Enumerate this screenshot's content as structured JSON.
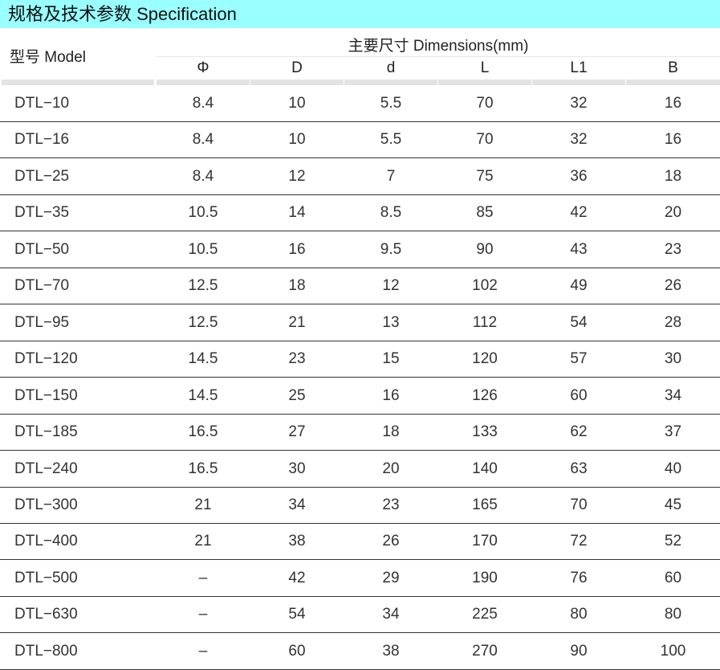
{
  "title": "规格及技术参数  Specification",
  "header": {
    "model": "型号 Model",
    "dimensions": "主要尺寸  Dimensions(mm)",
    "columns": [
      "Φ",
      "D",
      "d",
      "L",
      "L1",
      "B"
    ]
  },
  "rows": [
    [
      "DTL−10",
      "8.4",
      "10",
      "5.5",
      "70",
      "32",
      "16"
    ],
    [
      "DTL−16",
      "8.4",
      "10",
      "5.5",
      "70",
      "32",
      "16"
    ],
    [
      "DTL−25",
      "8.4",
      "12",
      "7",
      "75",
      "36",
      "18"
    ],
    [
      "DTL−35",
      "10.5",
      "14",
      "8.5",
      "85",
      "42",
      "20"
    ],
    [
      "DTL−50",
      "10.5",
      "16",
      "9.5",
      "90",
      "43",
      "23"
    ],
    [
      "DTL−70",
      "12.5",
      "18",
      "12",
      "102",
      "49",
      "26"
    ],
    [
      "DTL−95",
      "12.5",
      "21",
      "13",
      "112",
      "54",
      "28"
    ],
    [
      "DTL−120",
      "14.5",
      "23",
      "15",
      "120",
      "57",
      "30"
    ],
    [
      "DTL−150",
      "14.5",
      "25",
      "16",
      "126",
      "60",
      "34"
    ],
    [
      "DTL−185",
      "16.5",
      "27",
      "18",
      "133",
      "62",
      "37"
    ],
    [
      "DTL−240",
      "16.5",
      "30",
      "20",
      "140",
      "63",
      "40"
    ],
    [
      "DTL−300",
      "21",
      "34",
      "23",
      "165",
      "70",
      "45"
    ],
    [
      "DTL−400",
      "21",
      "38",
      "26",
      "170",
      "72",
      "52"
    ],
    [
      "DTL−500",
      "–",
      "42",
      "29",
      "190",
      "76",
      "60"
    ],
    [
      "DTL−630",
      "–",
      "54",
      "34",
      "225",
      "80",
      "80"
    ],
    [
      "DTL−800",
      "–",
      "60",
      "38",
      "270",
      "90",
      "100"
    ]
  ],
  "colors": {
    "title_bg": "#99ffff"
  }
}
